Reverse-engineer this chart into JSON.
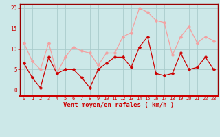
{
  "x": [
    0,
    1,
    2,
    3,
    4,
    5,
    6,
    7,
    8,
    9,
    10,
    11,
    12,
    13,
    14,
    15,
    16,
    17,
    18,
    19,
    20,
    21,
    22,
    23
  ],
  "rafales": [
    11.5,
    7,
    5,
    11.5,
    4,
    8,
    10.5,
    9.5,
    9,
    6,
    9,
    9,
    13,
    14,
    20,
    19,
    17,
    16.5,
    8.5,
    13,
    15.5,
    11.5,
    13,
    12
  ],
  "moyen": [
    6.5,
    3,
    0.5,
    8,
    4,
    5,
    5,
    3,
    0.5,
    5,
    6.5,
    8,
    8,
    5.5,
    10.5,
    13,
    4,
    3.5,
    4,
    9,
    5,
    5.5,
    8,
    5
  ],
  "color_rafales": "#f4a0a0",
  "color_moyen": "#cc0000",
  "bg_color": "#cce8e8",
  "grid_color": "#aacccc",
  "xlabel": "Vent moyen/en rafales ( km/h )",
  "xlabel_color": "#cc0000",
  "yticks": [
    0,
    5,
    10,
    15,
    20
  ],
  "ylim": [
    -1.5,
    21
  ],
  "xlim": [
    -0.5,
    23.5
  ],
  "tick_color": "#cc0000",
  "spine_color": "#cc0000",
  "axis_line_color": "#990000"
}
